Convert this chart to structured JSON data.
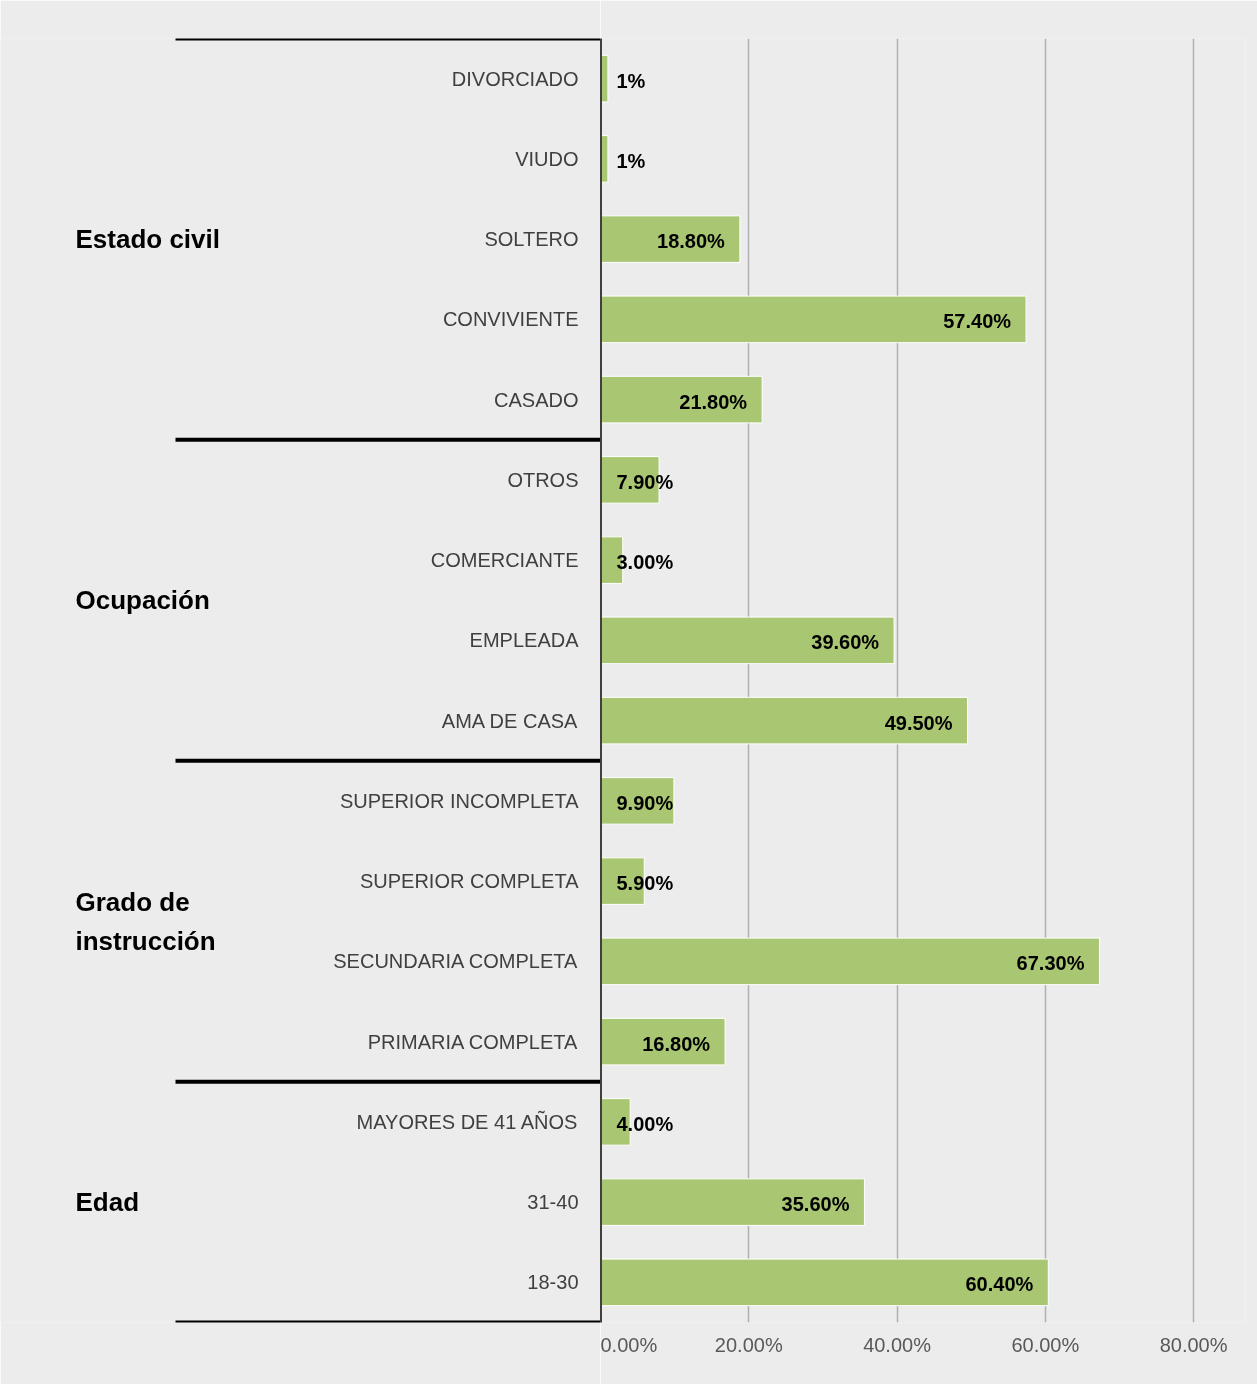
{
  "chart_data": {
    "type": "bar",
    "orientation": "horizontal",
    "categories": [
      "DIVORCIADO",
      "VIUDO",
      "SOLTERO",
      "CONVIVIENTE",
      "CASADO",
      "OTROS",
      "COMERCIANTE",
      "EMPLEADA",
      "AMA DE CASA",
      "SUPERIOR INCOMPLETA",
      "SUPERIOR COMPLETA",
      "SECUNDARIA COMPLETA",
      "PRIMARIA COMPLETA",
      "MAYORES DE 41 AÑOS",
      "31-40",
      "18-30"
    ],
    "values": [
      1,
      1,
      18.8,
      57.4,
      21.8,
      7.9,
      3.0,
      39.6,
      49.5,
      9.9,
      5.9,
      67.3,
      16.8,
      4.0,
      35.6,
      60.4
    ],
    "value_labels": [
      "1%",
      "1%",
      "18.80%",
      "57.40%",
      "21.80%",
      "7.90%",
      "3.00%",
      "39.60%",
      "49.50%",
      "9.90%",
      "5.90%",
      "67.30%",
      "16.80%",
      "4.00%",
      "35.60%",
      "60.40%"
    ],
    "color": "#a9c673",
    "xlim": [
      0,
      87
    ],
    "xticks": [
      {
        "value": 0,
        "label": "0.00%"
      },
      {
        "value": 20,
        "label": "20.00%"
      },
      {
        "value": 40,
        "label": "40.00%"
      },
      {
        "value": 60,
        "label": "60.00%"
      },
      {
        "value": 80,
        "label": "80.00%"
      }
    ],
    "grid": "x",
    "annotations": [
      "Estado civil",
      "Ocupación",
      "Grado de instrucción",
      "Edad"
    ]
  }
}
